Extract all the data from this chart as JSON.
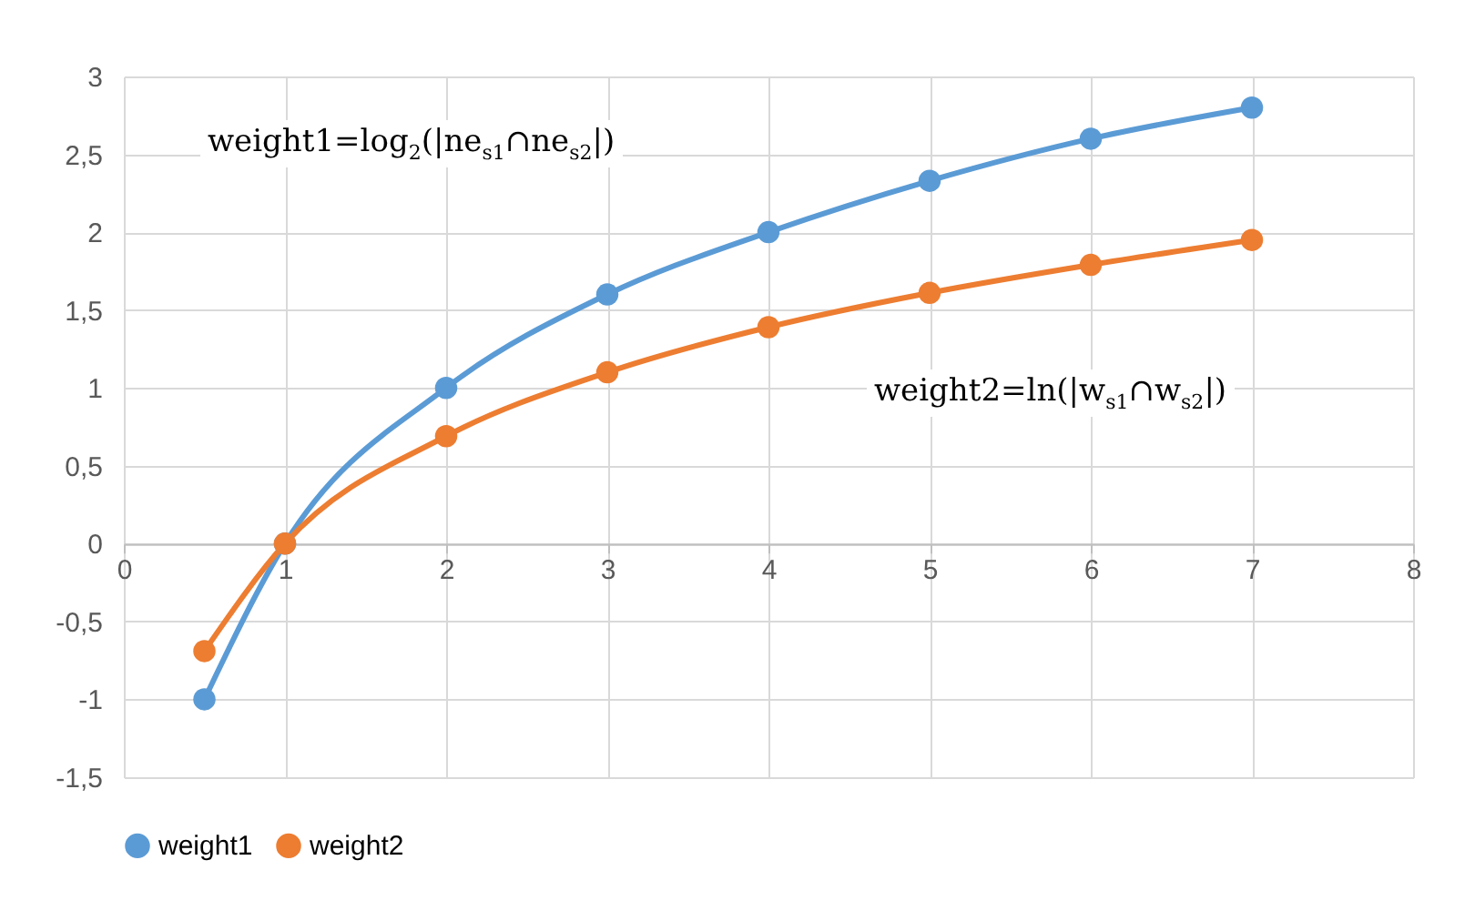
{
  "chart_data": {
    "type": "line",
    "x": [
      0.5,
      1,
      2,
      3,
      4,
      5,
      6,
      7
    ],
    "series": [
      {
        "name": "weight1",
        "color": "#5b9bd5",
        "values": [
          -1,
          0,
          1,
          1.6,
          2,
          2.33,
          2.6,
          2.8
        ]
      },
      {
        "name": "weight2",
        "color": "#ed7d31",
        "values": [
          -0.69,
          0,
          0.69,
          1.1,
          1.39,
          1.61,
          1.79,
          1.95
        ]
      }
    ],
    "xlim": [
      0,
      8
    ],
    "xticks": [
      0,
      1,
      2,
      3,
      4,
      5,
      6,
      7,
      8
    ],
    "ylim": [
      -1.5,
      3
    ],
    "yticks": [
      {
        "value": -1.5,
        "label": "-1,5"
      },
      {
        "value": -1,
        "label": "-1"
      },
      {
        "value": -0.5,
        "label": "-0,5"
      },
      {
        "value": 0,
        "label": "0"
      },
      {
        "value": 0.5,
        "label": "0,5"
      },
      {
        "value": 1,
        "label": "1"
      },
      {
        "value": 1.5,
        "label": "1,5"
      },
      {
        "value": 2,
        "label": "2"
      },
      {
        "value": 2.5,
        "label": "2,5"
      },
      {
        "value": 3,
        "label": "3"
      }
    ],
    "annotations": [
      "weight1=log$_{2}$(|ne$_{s1}$∩ne$_{s2}$|)",
      "weight2=ln(|w$_{s1}$∩w$_{s2}$|)"
    ],
    "grid": true,
    "legend": "bottom",
    "marker": "circle",
    "line_style": "solid"
  }
}
